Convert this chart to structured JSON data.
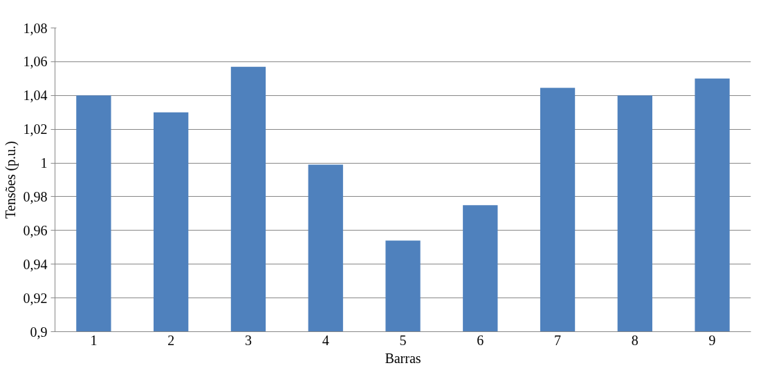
{
  "chart_data": {
    "type": "bar",
    "xlabel": "Barras",
    "ylabel": "Tensões (p.u.)",
    "categories": [
      "1",
      "2",
      "3",
      "4",
      "5",
      "6",
      "7",
      "8",
      "9"
    ],
    "values": [
      1.04,
      1.03,
      1.057,
      0.999,
      0.954,
      0.975,
      1.0445,
      1.04,
      1.05
    ],
    "color": "#4f81bd",
    "ylim": [
      0.9,
      1.08
    ],
    "yticks": [
      {
        "value": 0.9,
        "label": "0,9"
      },
      {
        "value": 0.92,
        "label": "0,92"
      },
      {
        "value": 0.94,
        "label": "0,94"
      },
      {
        "value": 0.96,
        "label": "0,96"
      },
      {
        "value": 0.98,
        "label": "0,98"
      },
      {
        "value": 1,
        "label": "1"
      },
      {
        "value": 1.02,
        "label": "1,02"
      },
      {
        "value": 1.04,
        "label": "1,04"
      },
      {
        "value": 1.06,
        "label": "1,06"
      },
      {
        "value": 1.08,
        "label": "1,08"
      }
    ],
    "grid": "y"
  }
}
